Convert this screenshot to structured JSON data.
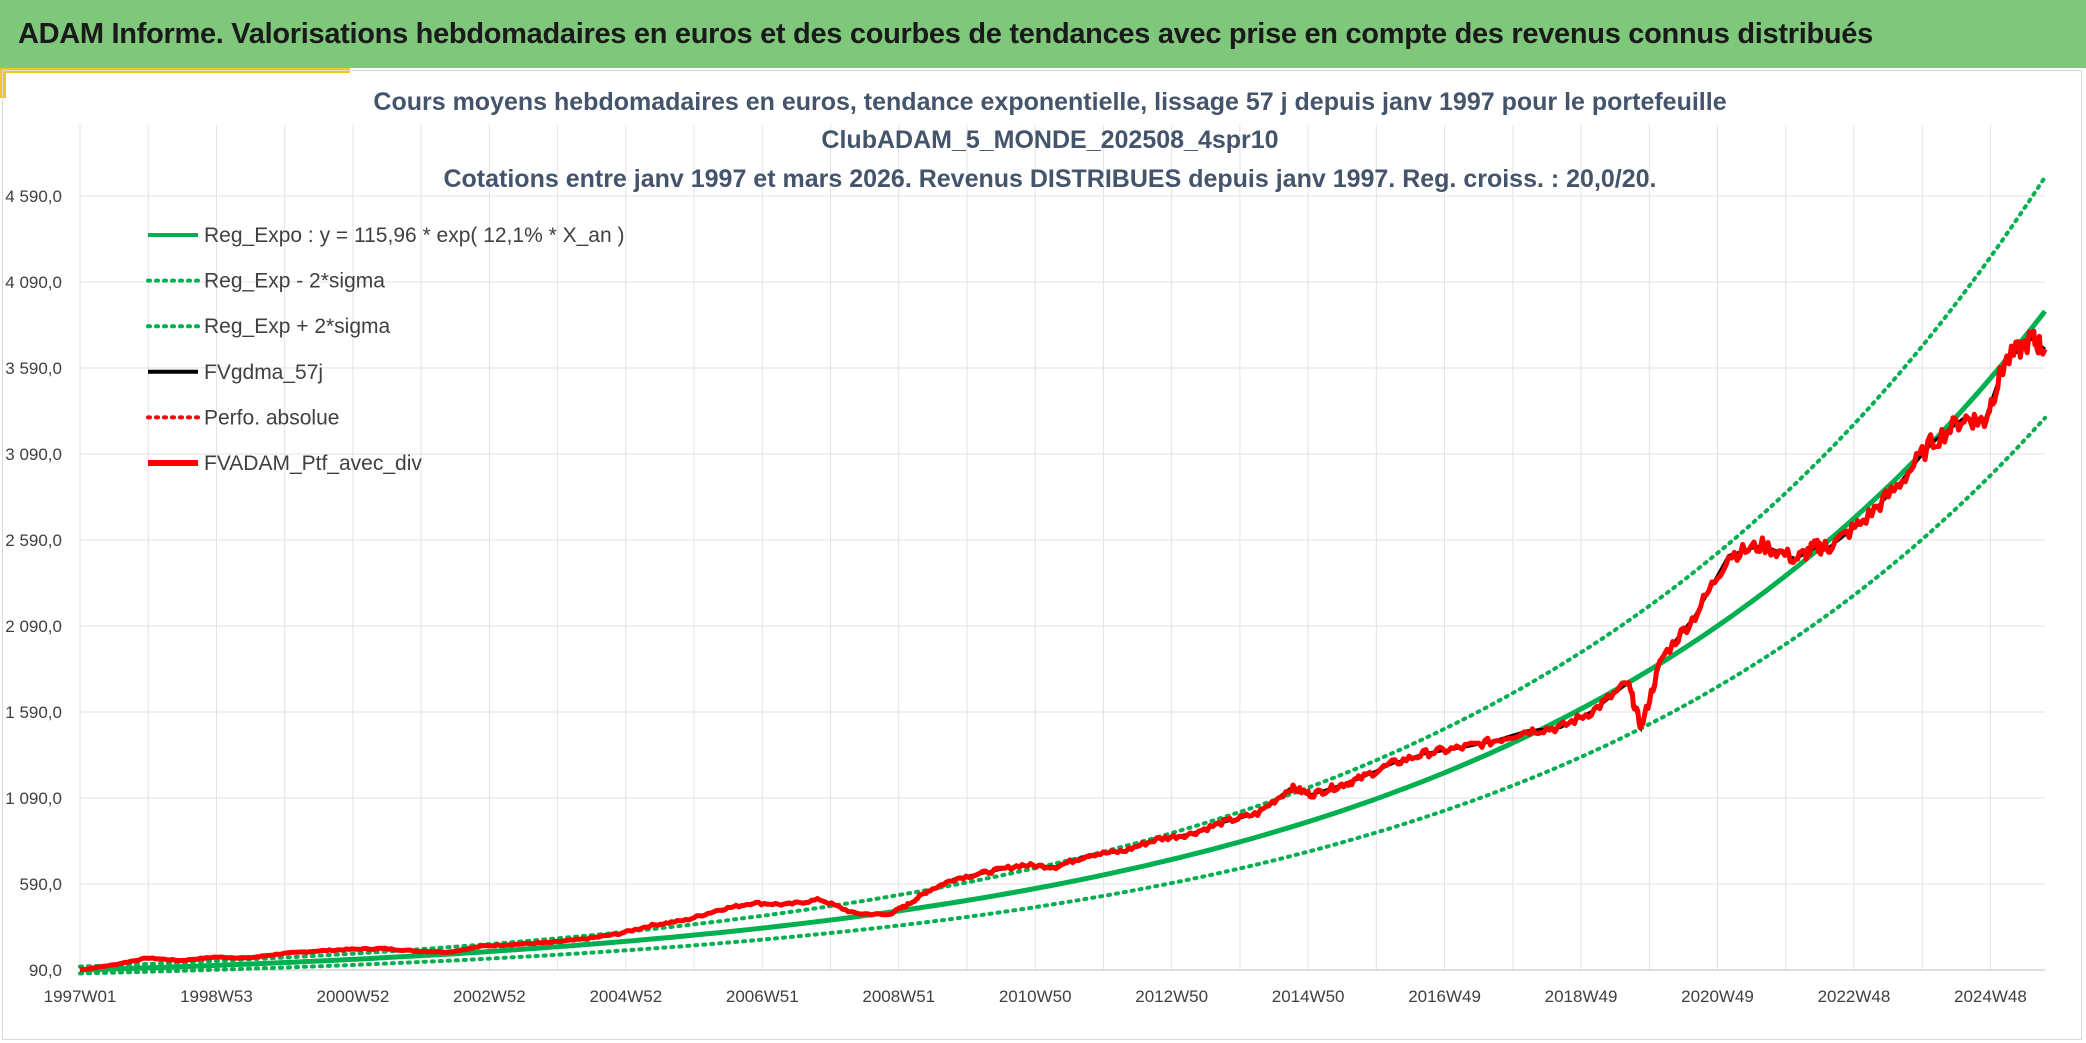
{
  "header": {
    "title": "ADAM Informe. Valorisations hebdomadaires en euros et des courbes de tendances avec prise en compte des revenus connus distribués"
  },
  "colors": {
    "banner": "#7ec77b",
    "accent": "#f6c520",
    "trend": "#00b050",
    "smoothed": "#000000",
    "portfolio": "#ff0000",
    "grid": "#e3e3e3"
  },
  "chart_data": {
    "type": "line",
    "title_lines": [
      "Cours moyens hebdomadaires en euros, tendance exponentielle, lissage 57 j depuis janv 1997 pour le portefeuille",
      "ClubADAM_5_MONDE_202508_4spr10",
      "Cotations entre janv 1997 et mars 2026. Revenus DISTRIBUES depuis janv 1997. Reg. croiss. : 20,0/20."
    ],
    "x_tick_labels": [
      "1997W01",
      "1998W53",
      "2000W52",
      "2002W52",
      "2004W52",
      "2006W51",
      "2008W51",
      "2010W50",
      "2012W50",
      "2014W50",
      "2016W49",
      "2018W49",
      "2020W49",
      "2022W48",
      "2024W48"
    ],
    "y_tick_labels": [
      "90,0",
      "590,0",
      "1 090,0",
      "1 590,0",
      "2 090,0",
      "2 590,0",
      "3 090,0",
      "3 590,0",
      "4 090,0",
      "4 590,0"
    ],
    "ylim": [
      90,
      4700
    ],
    "xlim": [
      "1997-01",
      "2026-03"
    ],
    "grid": true,
    "legend_position": "top-left",
    "series": [
      {
        "name": "Reg_Expo : y = 115,96 * exp( 12,1% *  X_an )",
        "color": "#00b050",
        "style": "solid",
        "key": "trend",
        "x": [
          1997.0,
          2026.2
        ],
        "values": [
          90,
          3920
        ]
      },
      {
        "name": "Reg_Exp - 2*sigma",
        "color": "#00b050",
        "style": "dotted",
        "key": "lower",
        "x": [
          1997.0,
          2026.2
        ],
        "values": [
          70,
          3300
        ]
      },
      {
        "name": "Reg_Exp + 2*sigma",
        "color": "#00b050",
        "style": "dotted",
        "key": "upper",
        "x": [
          1997.0,
          2026.2
        ],
        "values": [
          110,
          4700
        ]
      },
      {
        "name": "FVgdma_57j",
        "color": "#000000",
        "style": "solid",
        "key": "smoothed"
      },
      {
        "name": "Perfo. absolue",
        "color": "#ff0000",
        "style": "dotted",
        "key": "perfo"
      },
      {
        "name": "FVADAM_Ptf_avec_div",
        "color": "#ff0000",
        "style": "solid",
        "key": "portfolio",
        "x": [
          1997.0,
          1997.5,
          1998.0,
          1998.5,
          1999.0,
          1999.5,
          2000.0,
          2000.5,
          2001.0,
          2001.5,
          2002.0,
          2002.5,
          2003.0,
          2003.5,
          2004.0,
          2004.5,
          2005.0,
          2005.5,
          2006.0,
          2006.5,
          2007.0,
          2007.5,
          2008.0,
          2008.5,
          2009.0,
          2009.3,
          2009.6,
          2010.0,
          2010.5,
          2011.0,
          2011.5,
          2012.0,
          2012.5,
          2013.0,
          2013.5,
          2014.0,
          2014.5,
          2015.0,
          2015.3,
          2015.7,
          2016.0,
          2016.5,
          2017.0,
          2017.5,
          2018.0,
          2018.5,
          2019.0,
          2019.5,
          2020.0,
          2020.2,
          2020.5,
          2021.0,
          2021.5,
          2022.0,
          2022.5,
          2022.8,
          2023.0,
          2023.5,
          2024.0,
          2024.5,
          2025.0,
          2025.3,
          2025.6,
          2026.0,
          2026.2
        ],
        "values": [
          90,
          120,
          160,
          145,
          165,
          160,
          185,
          200,
          210,
          215,
          200,
          195,
          230,
          240,
          250,
          270,
          300,
          350,
          380,
          440,
          480,
          470,
          500,
          420,
          410,
          470,
          550,
          620,
          660,
          700,
          690,
          760,
          780,
          850,
          880,
          950,
          1000,
          1150,
          1110,
          1160,
          1200,
          1290,
          1350,
          1380,
          1420,
          1480,
          1500,
          1600,
          1760,
          1500,
          1900,
          2150,
          2500,
          2560,
          2480,
          2550,
          2550,
          2700,
          2900,
          3150,
          3300,
          3280,
          3620,
          3760,
          3700
        ]
      }
    ]
  }
}
